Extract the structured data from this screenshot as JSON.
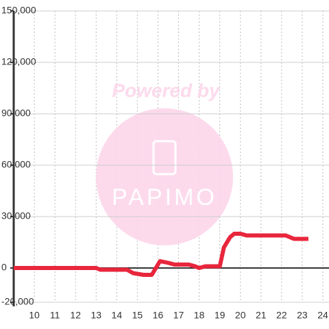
{
  "chart_data": {
    "type": "line",
    "watermark": {
      "title": "Powered by",
      "logo": "PAPIMO"
    },
    "x": [
      9,
      13,
      13.2,
      14.5,
      14.8,
      15.3,
      15.7,
      16.1,
      16.5,
      16.8,
      17.5,
      17.8,
      18,
      18.3,
      19,
      19.2,
      19.5,
      19.7,
      20,
      20.3,
      22.2,
      22.6,
      23.3
    ],
    "series": [
      {
        "color": "#e8263c",
        "values": [
          0,
          0,
          -1000,
          -1000,
          -3000,
          -4000,
          -4000,
          4000,
          3000,
          2000,
          2000,
          1000,
          0,
          1000,
          1000,
          12000,
          18000,
          20000,
          20000,
          19000,
          19000,
          17000,
          17000
        ]
      }
    ],
    "xlim": [
      9,
      24.3
    ],
    "xticks": [
      10,
      11,
      12,
      13,
      14,
      15,
      16,
      17,
      18,
      19,
      20,
      21,
      22,
      23,
      24
    ],
    "ylim": [
      -20000,
      150000
    ],
    "yticks": [
      {
        "value": -20000,
        "label": "-20,000"
      },
      0,
      {
        "value": 30000,
        "label": "30,000"
      },
      {
        "value": 60000,
        "label": "60,000"
      },
      {
        "value": 90000,
        "label": "90,000"
      },
      {
        "value": 120000,
        "label": "120,000"
      },
      {
        "value": 150000,
        "label": "150,000"
      }
    ],
    "grid": true
  }
}
